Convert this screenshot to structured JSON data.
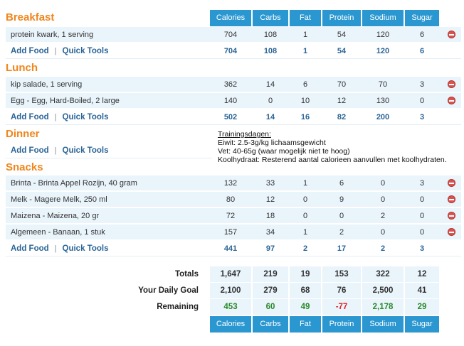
{
  "columns": [
    "Calories",
    "Carbs",
    "Fat",
    "Protein",
    "Sodium",
    "Sugar"
  ],
  "links": {
    "add_food": "Add Food",
    "separator": "|",
    "quick_tools": "Quick Tools"
  },
  "meals": {
    "breakfast": {
      "title": "Breakfast",
      "foods": [
        {
          "name": "protein kwark, 1 serving",
          "values": [
            "704",
            "108",
            "1",
            "54",
            "120",
            "6"
          ]
        }
      ],
      "totals": [
        "704",
        "108",
        "1",
        "54",
        "120",
        "6"
      ]
    },
    "lunch": {
      "title": "Lunch",
      "foods": [
        {
          "name": "kip salade, 1 serving",
          "values": [
            "362",
            "14",
            "6",
            "70",
            "70",
            "3"
          ]
        },
        {
          "name": "Egg - Egg, Hard-Boiled, 2 large",
          "values": [
            "140",
            "0",
            "10",
            "12",
            "130",
            "0"
          ]
        }
      ],
      "totals": [
        "502",
        "14",
        "16",
        "82",
        "200",
        "3"
      ]
    },
    "dinner": {
      "title": "Dinner"
    },
    "snacks": {
      "title": "Snacks",
      "foods": [
        {
          "name": "Brinta - Brinta Appel Rozijn, 40 gram",
          "values": [
            "132",
            "33",
            "1",
            "6",
            "0",
            "3"
          ]
        },
        {
          "name": "Melk - Magere Melk, 250 ml",
          "values": [
            "80",
            "12",
            "0",
            "9",
            "0",
            "0"
          ]
        },
        {
          "name": "Maizena - Maizena, 20 gr",
          "values": [
            "72",
            "18",
            "0",
            "0",
            "2",
            "0"
          ]
        },
        {
          "name": "Algemeen - Banaan, 1 stuk",
          "values": [
            "157",
            "34",
            "1",
            "2",
            "0",
            "0"
          ]
        }
      ],
      "totals": [
        "441",
        "97",
        "2",
        "17",
        "2",
        "3"
      ]
    }
  },
  "note": {
    "heading": "Trainingsdagen:",
    "line1": "Eiwit: 2.5-3g/kg lichaamsgewicht",
    "line2": "Vet: 40-65g (waar mogelijk niet te hoog)",
    "line3": "Koolhydraat: Resterend aantal calorieen aanvullen met koolhydraten."
  },
  "summary": {
    "totals_label": "Totals",
    "totals": [
      "1,647",
      "219",
      "19",
      "153",
      "322",
      "12"
    ],
    "goal_label": "Your Daily Goal",
    "goal": [
      "2,100",
      "279",
      "68",
      "76",
      "2,500",
      "41"
    ],
    "remaining_label": "Remaining",
    "remaining": [
      "453",
      "60",
      "49",
      "-77",
      "2,178",
      "29"
    ]
  },
  "colors": {
    "accent": "#f0861c",
    "header": "#2b97d1",
    "positive": "#2a8a2a",
    "negative": "#e02020"
  }
}
